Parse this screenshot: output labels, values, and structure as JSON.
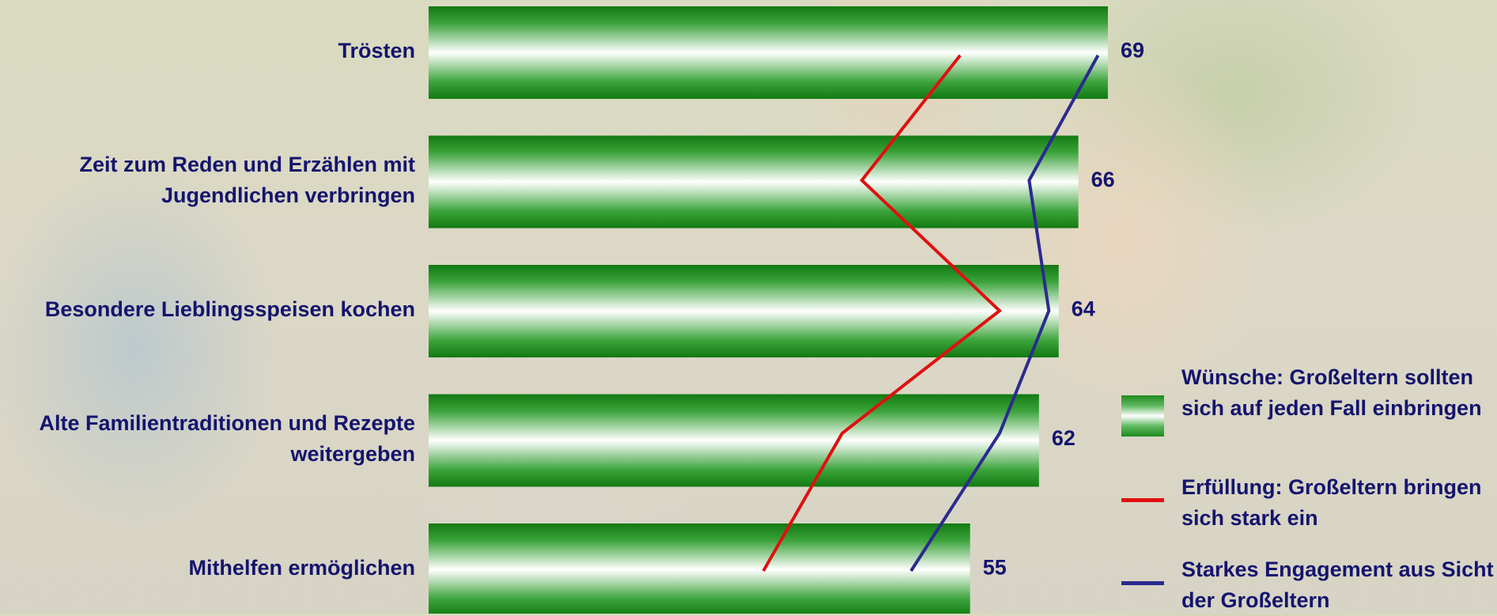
{
  "chart_data": {
    "type": "bar",
    "orientation": "horizontal",
    "categories": [
      "Trösten",
      "Zeit zum Reden und Erzählen mit Jugendlichen verbringen",
      "Besondere Lieblingsspeisen kochen",
      "Alte Familientraditionen und Rezepte weitergeben",
      "Mithelfen ermöglichen"
    ],
    "series": [
      {
        "name": "Wünsche: Großeltern sollten sich auf jeden Fall einbringen",
        "kind": "bar",
        "color": "#1e8a1e",
        "values": [
          69,
          66,
          64,
          62,
          55
        ]
      },
      {
        "name": "Erfüllung: Großeltern bringen sich stark ein",
        "kind": "line",
        "color": "#e01010",
        "values": [
          54,
          44,
          58,
          42,
          34
        ]
      },
      {
        "name": "Starkes Engagement aus Sicht der Großeltern",
        "kind": "line",
        "color": "#2b2b8f",
        "values": [
          68,
          61,
          63,
          58,
          49
        ]
      }
    ],
    "xlim": [
      0,
      100
    ],
    "legend_position": "bottom-right",
    "grid": false
  }
}
